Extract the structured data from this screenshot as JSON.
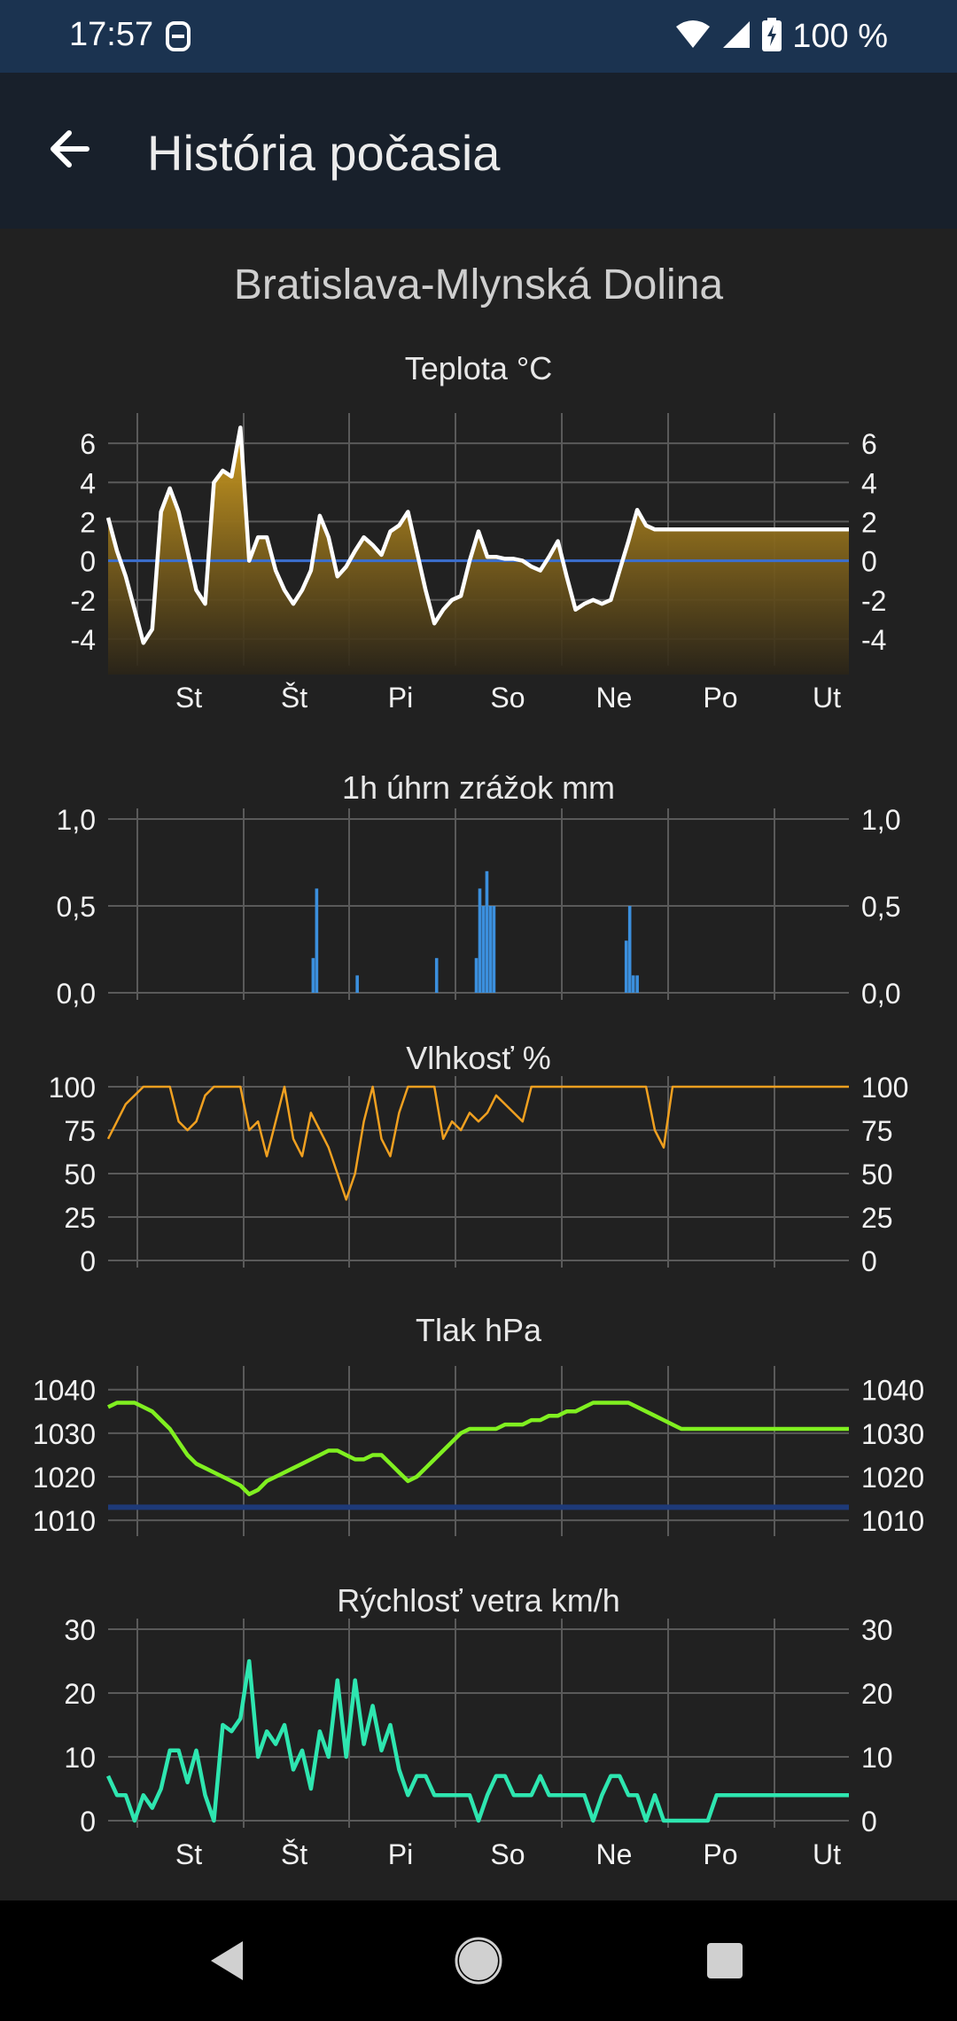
{
  "status_bar": {
    "time": "17:57",
    "battery": "100 %",
    "icons": [
      "notification-app-icon",
      "wifi-icon",
      "signal-icon",
      "battery-charging-icon"
    ]
  },
  "app_bar": {
    "title": "História počasia",
    "back_icon": "arrow-back-icon"
  },
  "station": "Bratislava-Mlynská Dolina",
  "days": [
    "St",
    "Št",
    "Pi",
    "So",
    "Ne",
    "Po",
    "Ut"
  ],
  "colors": {
    "background": "#212121",
    "status_bar": "#1b3350",
    "app_bar": "#18202b",
    "temperature_line": "#ffffff",
    "temperature_fill": "#d4a020",
    "precipitation": "#3b8fdd",
    "humidity": "#f0a020",
    "pressure": "#80f020",
    "pressure_reference": "#1e3a78",
    "wind": "#2ee6b0",
    "zero_line": "#3b6fd0",
    "grid": "#5a5a5a"
  },
  "chart_data": [
    {
      "type": "area",
      "title": "Teplota °C",
      "ylim": [
        -5,
        7
      ],
      "yticks": [
        "6",
        "4",
        "2",
        "0",
        "-2",
        "-4"
      ],
      "ytick_values": [
        6,
        4,
        2,
        0,
        -2,
        -4
      ],
      "x_range_hours": [
        0,
        168
      ],
      "xtick_labels": [
        "St",
        "Št",
        "Pi",
        "So",
        "Ne",
        "Po",
        "Ut"
      ],
      "grid": true,
      "series": [
        {
          "x": [
            0,
            2,
            4,
            6,
            8,
            10,
            12,
            14,
            16,
            18,
            20,
            22,
            24,
            26,
            28,
            30,
            32,
            34,
            36,
            38,
            40,
            42,
            44,
            46,
            48,
            50,
            52,
            54,
            56,
            58,
            60,
            62,
            64,
            66,
            68,
            70,
            72,
            74,
            76,
            78,
            80,
            82,
            84,
            86,
            88,
            90,
            92,
            94,
            96,
            98,
            100,
            102,
            104,
            106,
            108,
            110,
            112,
            114,
            116,
            118,
            120,
            122,
            124,
            126,
            128,
            130,
            132,
            134,
            136,
            138,
            140,
            142,
            144,
            146,
            148,
            150,
            152,
            154,
            156,
            158,
            160,
            162,
            164,
            166,
            168
          ],
          "values": [
            2.2,
            0.5,
            -0.8,
            -2.5,
            -4.2,
            -3.5,
            2.5,
            3.7,
            2.5,
            0.5,
            -1.5,
            -2.2,
            4,
            4.6,
            4.3,
            6.8,
            0,
            1.2,
            1.2,
            -0.5,
            -1.5,
            -2.2,
            -1.5,
            -0.5,
            2.3,
            1.2,
            -0.8,
            -0.3,
            0.5,
            1.2,
            0.8,
            0.3,
            1.5,
            1.8,
            2.5,
            0.5,
            -1.5,
            -3.2,
            -2.5,
            -2,
            -1.8,
            0,
            1.5,
            0.2,
            0.2,
            0.1,
            0.1,
            0,
            -0.3,
            -0.5,
            0.2,
            1,
            -0.8,
            -2.5,
            -2.2,
            -2,
            -2.2,
            -2,
            -0.5,
            1,
            2.6,
            1.8,
            1.6,
            1.6,
            1.6,
            1.6,
            1.6,
            1.6,
            1.6,
            1.6,
            1.6,
            1.6,
            1.6,
            1.6,
            1.6,
            1.6,
            1.6,
            1.6,
            1.6,
            1.6,
            1.6,
            1.6,
            1.6,
            1.6,
            1.6
          ]
        }
      ]
    },
    {
      "type": "bar",
      "title": "1h úhrn zrážok mm",
      "ylim": [
        0,
        1
      ],
      "yticks": [
        "1,0",
        "0,5",
        "0,0"
      ],
      "ytick_values": [
        1,
        0.5,
        0
      ],
      "x_range_hours": [
        0,
        168
      ],
      "xtick_labels": [],
      "grid": true,
      "series": [
        {
          "x": [
            46.5,
            47.3,
            56.5,
            74.5,
            83.5,
            84.3,
            85.1,
            85.9,
            86.7,
            87.5,
            117.5,
            118.3,
            119.1,
            120
          ],
          "values": [
            0.2,
            0.6,
            0.1,
            0.2,
            0.2,
            0.6,
            0.5,
            0.7,
            0.5,
            0.5,
            0.3,
            0.5,
            0.1,
            0.1
          ]
        }
      ]
    },
    {
      "type": "line",
      "title": "Vlhkosť %",
      "ylim": [
        0,
        100
      ],
      "yticks": [
        "100",
        "75",
        "50",
        "25",
        "0"
      ],
      "ytick_values": [
        100,
        75,
        50,
        25,
        0
      ],
      "x_range_hours": [
        0,
        168
      ],
      "xtick_labels": [],
      "grid": true,
      "series": [
        {
          "x": [
            0,
            2,
            4,
            6,
            8,
            10,
            12,
            14,
            16,
            18,
            20,
            22,
            24,
            26,
            28,
            30,
            32,
            34,
            36,
            38,
            40,
            42,
            44,
            46,
            48,
            50,
            52,
            54,
            56,
            58,
            60,
            62,
            64,
            66,
            68,
            70,
            72,
            74,
            76,
            78,
            80,
            82,
            84,
            86,
            88,
            90,
            92,
            94,
            96,
            98,
            100,
            102,
            104,
            106,
            108,
            110,
            112,
            114,
            116,
            118,
            120,
            122,
            124,
            126,
            128,
            130,
            132,
            134,
            136,
            138,
            140,
            142,
            144,
            146,
            148,
            150,
            152,
            154,
            156,
            158,
            160,
            162,
            164,
            166,
            168
          ],
          "values": [
            70,
            80,
            90,
            95,
            100,
            100,
            100,
            100,
            80,
            75,
            80,
            95,
            100,
            100,
            100,
            100,
            75,
            80,
            60,
            80,
            100,
            70,
            60,
            85,
            75,
            65,
            50,
            35,
            50,
            80,
            100,
            70,
            60,
            85,
            100,
            100,
            100,
            100,
            70,
            80,
            75,
            85,
            80,
            85,
            95,
            90,
            85,
            80,
            100,
            100,
            100,
            100,
            100,
            100,
            100,
            100,
            100,
            100,
            100,
            100,
            100,
            100,
            75,
            65,
            100,
            100,
            100,
            100,
            100,
            100,
            100,
            100,
            100,
            100,
            100,
            100,
            100,
            100,
            100,
            100,
            100,
            100,
            100,
            100,
            100
          ]
        }
      ]
    },
    {
      "type": "line",
      "title": "Tlak hPa",
      "ylim": [
        1008,
        1043
      ],
      "yticks": [
        "1040",
        "1030",
        "1020",
        "1010"
      ],
      "ytick_values": [
        1040,
        1030,
        1020,
        1010
      ],
      "x_range_hours": [
        0,
        168
      ],
      "xtick_labels": [],
      "grid": true,
      "reference_value": 1013,
      "series": [
        {
          "x": [
            0,
            2,
            4,
            6,
            8,
            10,
            12,
            14,
            16,
            18,
            20,
            22,
            24,
            26,
            28,
            30,
            32,
            34,
            36,
            38,
            40,
            42,
            44,
            46,
            48,
            50,
            52,
            54,
            56,
            58,
            60,
            62,
            64,
            66,
            68,
            70,
            72,
            74,
            76,
            78,
            80,
            82,
            84,
            86,
            88,
            90,
            92,
            94,
            96,
            98,
            100,
            102,
            104,
            106,
            108,
            110,
            112,
            114,
            116,
            118,
            120,
            122,
            124,
            126,
            128,
            130,
            132,
            134,
            136,
            138,
            140,
            142,
            144,
            146,
            148,
            150,
            152,
            154,
            156,
            158,
            160,
            162,
            164,
            166,
            168
          ],
          "values": [
            1036,
            1037,
            1037,
            1037,
            1036,
            1035,
            1033,
            1031,
            1028,
            1025,
            1023,
            1022,
            1021,
            1020,
            1019,
            1018,
            1016,
            1017,
            1019,
            1020,
            1021,
            1022,
            1023,
            1024,
            1025,
            1026,
            1026,
            1025,
            1024,
            1024,
            1025,
            1025,
            1023,
            1021,
            1019,
            1020,
            1022,
            1024,
            1026,
            1028,
            1030,
            1031,
            1031,
            1031,
            1031,
            1032,
            1032,
            1032,
            1033,
            1033,
            1034,
            1034,
            1035,
            1035,
            1036,
            1037,
            1037,
            1037,
            1037,
            1037,
            1036,
            1035,
            1034,
            1033,
            1032,
            1031,
            1031,
            1031,
            1031,
            1031,
            1031,
            1031,
            1031,
            1031,
            1031,
            1031,
            1031,
            1031,
            1031,
            1031,
            1031,
            1031,
            1031,
            1031,
            1031
          ]
        }
      ]
    },
    {
      "type": "line",
      "title": "Rýchlosť vetra km/h",
      "ylim": [
        0,
        30
      ],
      "yticks": [
        "30",
        "20",
        "10",
        "0"
      ],
      "ytick_values": [
        30,
        20,
        10,
        0
      ],
      "x_range_hours": [
        0,
        168
      ],
      "xtick_labels": [
        "St",
        "Št",
        "Pi",
        "So",
        "Ne",
        "Po",
        "Ut"
      ],
      "grid": true,
      "series": [
        {
          "x": [
            0,
            2,
            4,
            6,
            8,
            10,
            12,
            14,
            16,
            18,
            20,
            22,
            24,
            26,
            28,
            30,
            32,
            34,
            36,
            38,
            40,
            42,
            44,
            46,
            48,
            50,
            52,
            54,
            56,
            58,
            60,
            62,
            64,
            66,
            68,
            70,
            72,
            74,
            76,
            78,
            80,
            82,
            84,
            86,
            88,
            90,
            92,
            94,
            96,
            98,
            100,
            102,
            104,
            106,
            108,
            110,
            112,
            114,
            116,
            118,
            120,
            122,
            124,
            126,
            128,
            130,
            132,
            134,
            136,
            138,
            140,
            142,
            144,
            146,
            148,
            150,
            152,
            154,
            156,
            158,
            160,
            162,
            164,
            166,
            168
          ],
          "values": [
            7,
            4,
            4,
            0,
            4,
            2,
            5,
            11,
            11,
            6,
            11,
            4,
            0,
            15,
            14,
            16,
            25,
            10,
            14,
            12,
            15,
            8,
            11,
            5,
            14,
            10,
            22,
            10,
            22,
            12,
            18,
            11,
            15,
            8,
            4,
            7,
            7,
            4,
            4,
            4,
            4,
            4,
            0,
            4,
            7,
            7,
            4,
            4,
            4,
            7,
            4,
            4,
            4,
            4,
            4,
            0,
            4,
            7,
            7,
            4,
            4,
            0,
            4,
            0,
            0,
            0,
            0,
            0,
            0,
            4,
            4,
            4,
            4,
            4,
            4,
            4,
            4,
            4,
            4,
            4,
            4,
            4,
            4,
            4,
            4
          ]
        }
      ]
    }
  ],
  "nav_bar": {
    "back_icon": "nav-back-icon",
    "home_icon": "nav-home-icon",
    "recents_icon": "nav-recents-icon"
  }
}
